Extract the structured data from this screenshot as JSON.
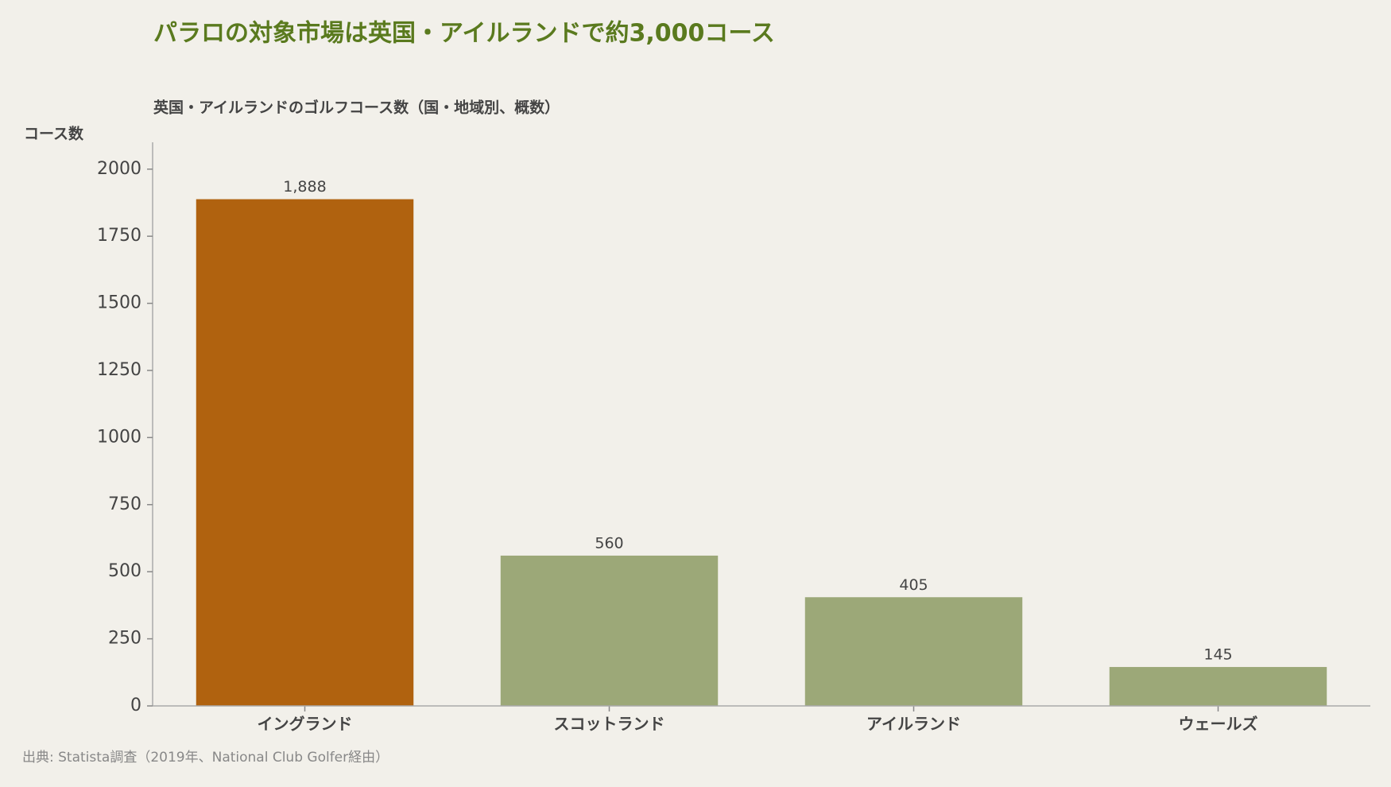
{
  "chart_data": {
    "type": "bar",
    "title": "パラロの対象市場は英国・アイルランドで約3,000コース",
    "subtitle": "英国・アイルランドのゴルフコース数（国・地域別、概数）",
    "y_label": "コース数",
    "source": "出典: Statista調査（2019年、National Club Golfer経由）",
    "categories": [
      "イングランド",
      "スコットランド",
      "アイルランド",
      "ウェールズ"
    ],
    "values": [
      1888,
      560,
      405,
      145
    ],
    "value_labels": [
      "1,888",
      "560",
      "405",
      "145"
    ],
    "colors": [
      "#b0620f",
      "#9ca878",
      "#9ca878",
      "#9ca878"
    ],
    "ylim": [
      0,
      2100
    ],
    "yticks": [
      0,
      250,
      500,
      750,
      1000,
      1250,
      1500,
      1750,
      2000
    ]
  }
}
